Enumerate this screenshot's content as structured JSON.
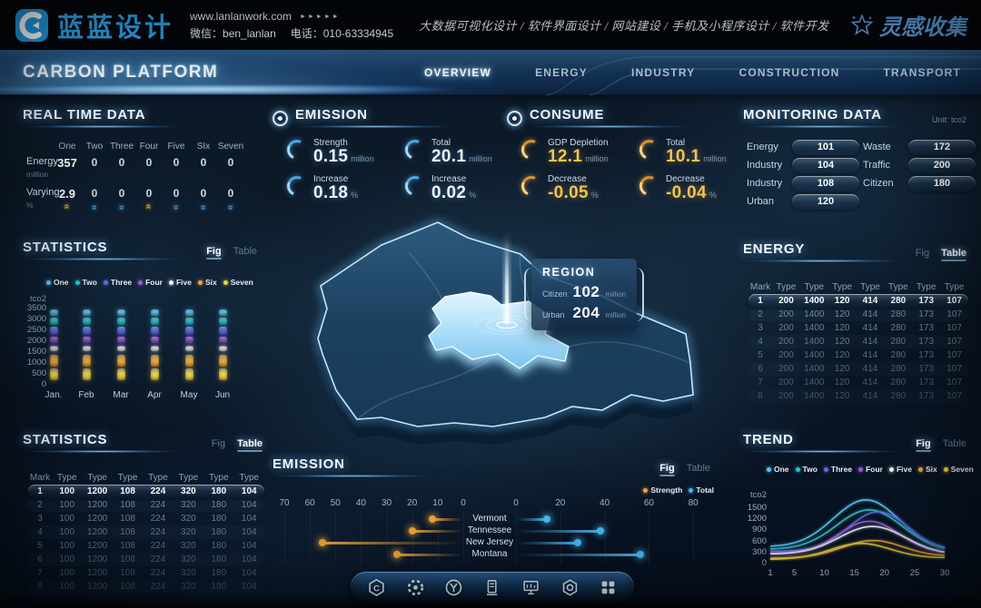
{
  "brand": {
    "logo_text": "蓝蓝设计",
    "website": "www.lanlanwork.com",
    "website_arrows": "►►►►►",
    "wechat": "微信：ben_lanlan",
    "phone": "电话：010-63334945",
    "services": "大数据可视化设计 / 软件界面设计 / 网站建设 / 手机及小程序设计 / 软件开发",
    "collect_logo": "灵感收集"
  },
  "nav": {
    "title": "CARBON PLATFORM",
    "items": [
      {
        "label": "OVERVIEW",
        "active": true
      },
      {
        "label": "ENERGY",
        "active": false
      },
      {
        "label": "INDUSTRY",
        "active": false
      },
      {
        "label": "CONSTRUCTION",
        "active": false
      },
      {
        "label": "TRANSPORT",
        "active": false
      }
    ]
  },
  "toggles": {
    "fig": "Fig",
    "table": "Table"
  },
  "series": [
    {
      "name": "One",
      "color": "#55c9f5"
    },
    {
      "name": "Two",
      "color": "#2fc3cd"
    },
    {
      "name": "Three",
      "color": "#5a6ee2"
    },
    {
      "name": "Four",
      "color": "#9a5bd8"
    },
    {
      "name": "Five",
      "color": "#edf3f9"
    },
    {
      "name": "Six",
      "color": "#eda63a"
    },
    {
      "name": "Seven",
      "color": "#e8d245"
    }
  ],
  "real_time": {
    "title": "REAL TIME DATA",
    "columns": [
      "One",
      "Two",
      "Three",
      "Four",
      "Five",
      "SIx",
      "Seven"
    ],
    "rows": [
      {
        "label": "Energy",
        "unit": "million",
        "values": [
          "357",
          "0",
          "0",
          "0",
          "0",
          "0",
          "0"
        ]
      },
      {
        "label": "Varying",
        "unit": "%",
        "values": [
          "2.9",
          "0",
          "0",
          "0",
          "0",
          "0",
          "0"
        ]
      }
    ],
    "trends": [
      "up",
      "down",
      "down",
      "up",
      "down",
      "down",
      "down"
    ]
  },
  "emission_kpi": {
    "title": "EMISSION",
    "stats": [
      {
        "label": "Strength",
        "value": "0.15",
        "unit": "million"
      },
      {
        "label": "Total",
        "value": "20.1",
        "unit": "million"
      },
      {
        "label": "Increase",
        "value": "0.18",
        "unit": "%"
      },
      {
        "label": "Increase",
        "value": "0.02",
        "unit": "%"
      }
    ]
  },
  "consume_kpi": {
    "title": "CONSUME",
    "stats": [
      {
        "label": "GDP Depletion",
        "value": "12.1",
        "unit": "million"
      },
      {
        "label": "Total",
        "value": "10.1",
        "unit": "million"
      },
      {
        "label": "Decrease",
        "value": "-0.05",
        "unit": "%"
      },
      {
        "label": "Decrease",
        "value": "-0.04",
        "unit": "%"
      }
    ]
  },
  "monitoring": {
    "title": "MONITORING DATA",
    "unit_label": "Unit: tco2",
    "left_items": [
      {
        "label": "Energy",
        "value": "101"
      },
      {
        "label": "Industry",
        "value": "104"
      },
      {
        "label": "Industry",
        "value": "108"
      },
      {
        "label": "Urban",
        "value": "120"
      }
    ],
    "right_items": [
      {
        "label": "Waste",
        "value": "172"
      },
      {
        "label": "Traffic",
        "value": "200"
      },
      {
        "label": "Citizen",
        "value": "180"
      }
    ]
  },
  "statistics_fig": {
    "title": "STATISTICS",
    "active_view": "fig",
    "chart": {
      "type": "bar",
      "unit": "tco2",
      "yticks": [
        0,
        500,
        1000,
        1500,
        2000,
        2500,
        3000,
        3500
      ],
      "categories": [
        "Jan.",
        "Feb",
        "Mar",
        "Apr",
        "May",
        "Jun"
      ],
      "stack_segments": [
        {
          "series": "Seven",
          "from": 150,
          "to": 700
        },
        {
          "series": "Six",
          "from": 800,
          "to": 1350
        },
        {
          "series": "Five",
          "from": 1480,
          "to": 1760
        },
        {
          "series": "Four",
          "from": 1860,
          "to": 2160
        },
        {
          "series": "Three",
          "from": 2260,
          "to": 2620
        },
        {
          "series": "Two",
          "from": 2720,
          "to": 3060
        },
        {
          "series": "One",
          "from": 3140,
          "to": 3400
        }
      ]
    }
  },
  "statistics_table": {
    "title": "STATISTICS",
    "active_view": "table",
    "columns": [
      "Mark",
      "Type",
      "Type",
      "Type",
      "Type",
      "Type",
      "Type",
      "Type"
    ],
    "rows": [
      [
        "1",
        "100",
        "1200",
        "108",
        "224",
        "320",
        "180",
        "104"
      ],
      [
        "2",
        "100",
        "1200",
        "108",
        "224",
        "320",
        "180",
        "104"
      ],
      [
        "3",
        "100",
        "1200",
        "108",
        "224",
        "320",
        "180",
        "104"
      ],
      [
        "4",
        "100",
        "1200",
        "108",
        "224",
        "320",
        "180",
        "104"
      ],
      [
        "5",
        "100",
        "1200",
        "108",
        "224",
        "320",
        "180",
        "104"
      ],
      [
        "6",
        "100",
        "1200",
        "108",
        "224",
        "320",
        "180",
        "104"
      ],
      [
        "7",
        "100",
        "1200",
        "108",
        "224",
        "320",
        "180",
        "104"
      ],
      [
        "8",
        "100",
        "1200",
        "108",
        "224",
        "320",
        "180",
        "104"
      ]
    ]
  },
  "energy_table": {
    "title": "ENERGY",
    "active_view": "table",
    "columns": [
      "Mark",
      "Type",
      "Type",
      "Type",
      "Type",
      "Type",
      "Type",
      "Type"
    ],
    "rows": [
      [
        "1",
        "200",
        "1400",
        "120",
        "414",
        "280",
        "173",
        "107"
      ],
      [
        "2",
        "200",
        "1400",
        "120",
        "414",
        "280",
        "173",
        "107"
      ],
      [
        "3",
        "200",
        "1400",
        "120",
        "414",
        "280",
        "173",
        "107"
      ],
      [
        "4",
        "200",
        "1400",
        "120",
        "414",
        "280",
        "173",
        "107"
      ],
      [
        "5",
        "200",
        "1400",
        "120",
        "414",
        "280",
        "173",
        "107"
      ],
      [
        "6",
        "200",
        "1400",
        "120",
        "414",
        "280",
        "173",
        "107"
      ],
      [
        "7",
        "200",
        "1400",
        "120",
        "414",
        "280",
        "173",
        "107"
      ],
      [
        "8",
        "200",
        "1400",
        "120",
        "414",
        "280",
        "173",
        "107"
      ]
    ]
  },
  "trend": {
    "title": "TREND",
    "active_view": "fig",
    "chart": {
      "type": "line",
      "unit": "tco2",
      "yticks": [
        0,
        300,
        600,
        900,
        1200,
        1500
      ],
      "xticks": [
        1,
        5,
        10,
        15,
        20,
        25,
        30
      ],
      "series": [
        {
          "name": "One",
          "start": 430,
          "peak": 1700,
          "end": 330,
          "center": 17,
          "width": 5.5
        },
        {
          "name": "Two",
          "start": 360,
          "peak": 1430,
          "end": 300,
          "center": 17.5,
          "width": 5.5
        },
        {
          "name": "Three",
          "start": 310,
          "peak": 1380,
          "end": 290,
          "center": 19,
          "width": 5
        },
        {
          "name": "Four",
          "start": 260,
          "peak": 1120,
          "end": 240,
          "center": 17.5,
          "width": 5
        },
        {
          "name": "Five",
          "start": 230,
          "peak": 980,
          "end": 215,
          "center": 18,
          "width": 5.5
        },
        {
          "name": "Six",
          "start": 120,
          "peak": 600,
          "end": 170,
          "center": 18,
          "width": 5
        },
        {
          "name": "Seven",
          "start": 85,
          "peak": 520,
          "end": 130,
          "center": 16,
          "width": 5
        }
      ]
    }
  },
  "region_popup": {
    "title": "REGION",
    "rows": [
      {
        "label": "Citizen",
        "value": "102",
        "unit": "million"
      },
      {
        "label": "Urban",
        "value": "204",
        "unit": "million"
      }
    ]
  },
  "emission_chart": {
    "title": "EMISSION",
    "active_view": "fig",
    "type": "dumbbell-bar",
    "legend": [
      {
        "name": "Strength",
        "color": "#eda63a"
      },
      {
        "name": "Total",
        "color": "#49b8f2"
      }
    ],
    "left_axis_ticks": [
      70,
      60,
      50,
      40,
      30,
      20,
      10,
      0
    ],
    "right_axis_ticks": [
      0,
      20,
      40,
      60,
      80
    ],
    "rows": [
      {
        "label": "Vermont",
        "strength": 12,
        "total": 14
      },
      {
        "label": "Tennessee",
        "strength": 20,
        "total": 38
      },
      {
        "label": "New Jersey",
        "strength": 55,
        "total": 28
      },
      {
        "label": "Montana",
        "strength": 26,
        "total": 56
      }
    ]
  },
  "toolbar": {
    "icons": [
      "hexagon-c",
      "gear",
      "circle-y",
      "charging-station",
      "billboard",
      "hex-nut",
      "apps-grid"
    ]
  }
}
